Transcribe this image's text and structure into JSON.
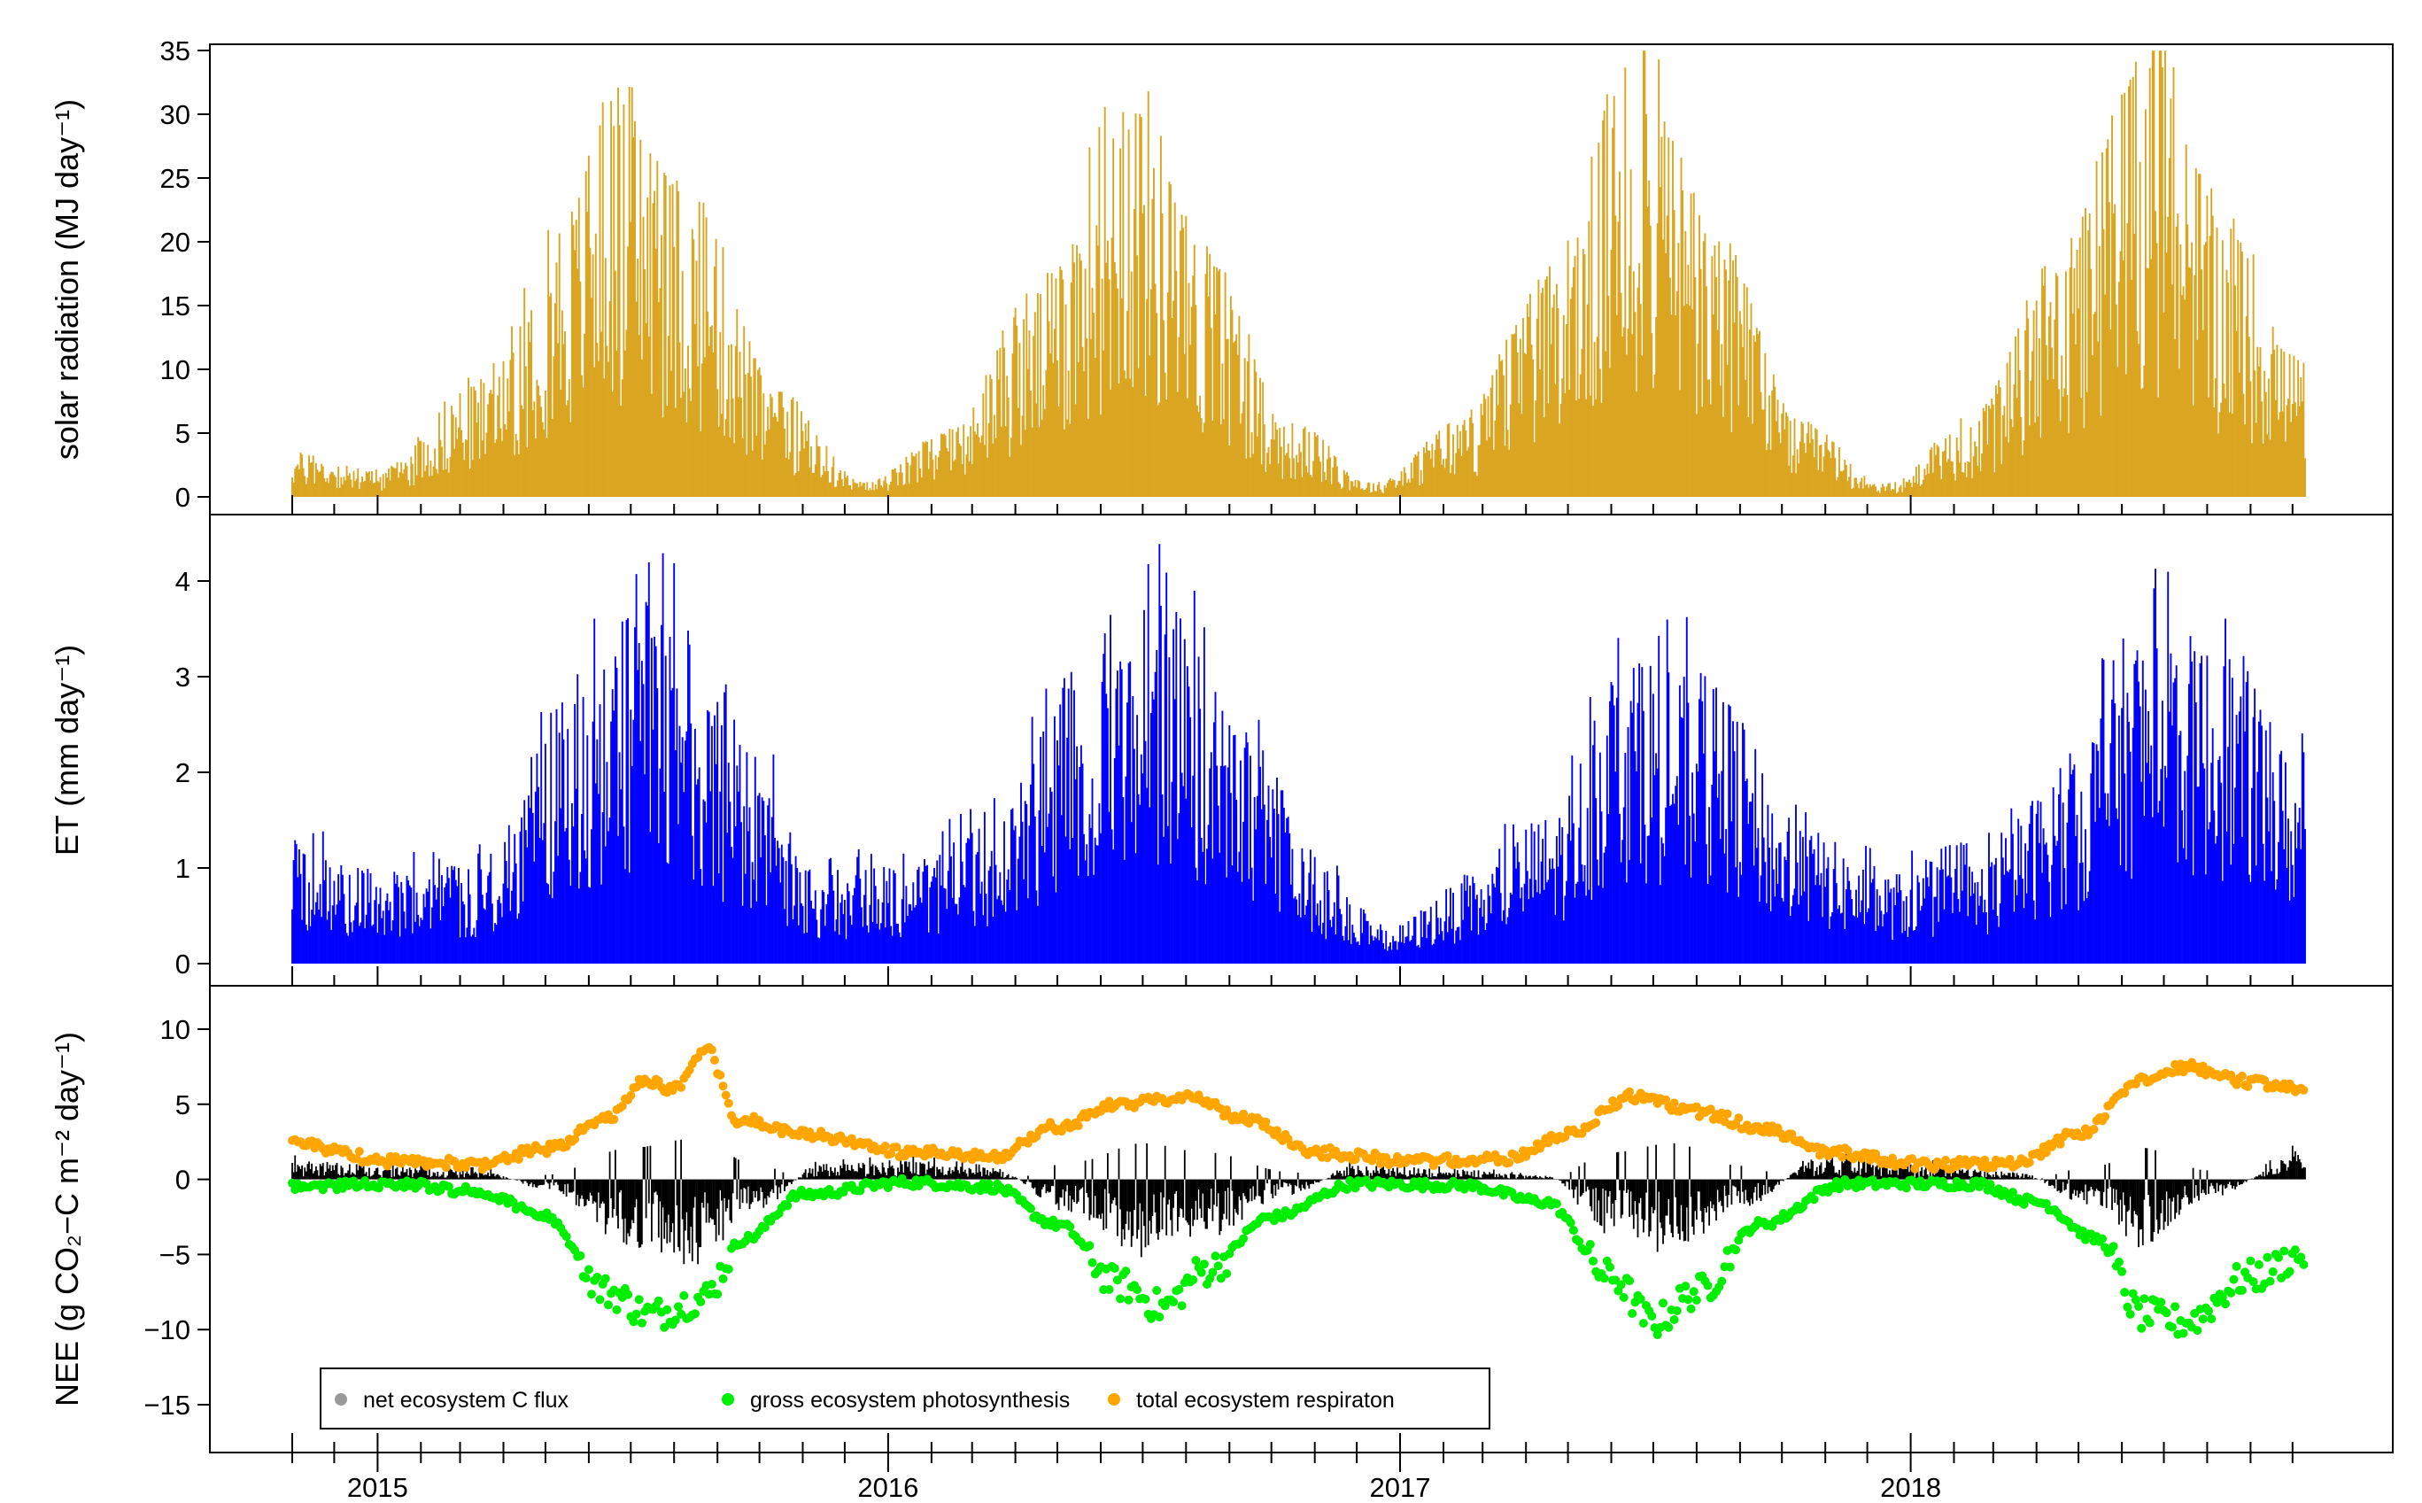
{
  "chart_data": [
    {
      "type": "bar",
      "panel": "solar",
      "ylabel": "solar radiation  (MJ day⁻¹)",
      "ylim": [
        0,
        35
      ],
      "yticks": [
        0,
        5,
        10,
        15,
        20,
        25,
        30,
        35
      ],
      "color": "#DAA520",
      "x_range": [
        "2014-11-01",
        "2018-10-10"
      ],
      "series": [
        {
          "date": "2014-11-01",
          "value": 3.0
        },
        {
          "date": "2015-01-01",
          "value": 1.8
        },
        {
          "date": "2015-03-15",
          "value": 8.0
        },
        {
          "date": "2015-05-15",
          "value": 19.5
        },
        {
          "date": "2015-06-21",
          "value": 27.5
        },
        {
          "date": "2015-08-15",
          "value": 20.0
        },
        {
          "date": "2015-10-15",
          "value": 7.0
        },
        {
          "date": "2015-12-15",
          "value": 1.0
        },
        {
          "date": "2016-02-15",
          "value": 4.5
        },
        {
          "date": "2016-04-15",
          "value": 14.0
        },
        {
          "date": "2016-06-21",
          "value": 28.8
        },
        {
          "date": "2016-08-15",
          "value": 17.0
        },
        {
          "date": "2016-10-15",
          "value": 5.0
        },
        {
          "date": "2016-12-15",
          "value": 1.0
        },
        {
          "date": "2017-02-15",
          "value": 5.5
        },
        {
          "date": "2017-04-15",
          "value": 15.0
        },
        {
          "date": "2017-06-21",
          "value": 30.5
        },
        {
          "date": "2017-08-15",
          "value": 18.0
        },
        {
          "date": "2017-10-15",
          "value": 5.0
        },
        {
          "date": "2017-12-15",
          "value": 0.9
        },
        {
          "date": "2018-02-15",
          "value": 5.5
        },
        {
          "date": "2018-04-15",
          "value": 16.0
        },
        {
          "date": "2018-06-21",
          "value": 31.5
        },
        {
          "date": "2018-08-15",
          "value": 19.0
        },
        {
          "date": "2018-10-10",
          "value": 9.0
        }
      ]
    },
    {
      "type": "bar",
      "panel": "et",
      "ylabel": "ET (mm day⁻¹)",
      "ylim": [
        0,
        4.5
      ],
      "yticks": [
        0,
        1,
        2,
        3,
        4
      ],
      "color": "#0000FF",
      "x_range": [
        "2014-11-01",
        "2018-10-10"
      ],
      "series": [
        {
          "date": "2014-11-01",
          "value": 1.1
        },
        {
          "date": "2015-01-01",
          "value": 0.8
        },
        {
          "date": "2015-03-15",
          "value": 0.9
        },
        {
          "date": "2015-05-15",
          "value": 2.3
        },
        {
          "date": "2015-07-15",
          "value": 3.3
        },
        {
          "date": "2015-09-15",
          "value": 2.0
        },
        {
          "date": "2015-11-15",
          "value": 0.8
        },
        {
          "date": "2016-01-15",
          "value": 0.9
        },
        {
          "date": "2016-03-15",
          "value": 1.2
        },
        {
          "date": "2016-05-15",
          "value": 2.6
        },
        {
          "date": "2016-07-15",
          "value": 3.2
        },
        {
          "date": "2016-09-15",
          "value": 2.0
        },
        {
          "date": "2016-11-15",
          "value": 0.8
        },
        {
          "date": "2016-12-20",
          "value": 0.3
        },
        {
          "date": "2017-02-15",
          "value": 0.7
        },
        {
          "date": "2017-04-15",
          "value": 1.3
        },
        {
          "date": "2017-06-15",
          "value": 2.8
        },
        {
          "date": "2017-08-15",
          "value": 2.4
        },
        {
          "date": "2017-10-15",
          "value": 1.2
        },
        {
          "date": "2017-12-15",
          "value": 0.8
        },
        {
          "date": "2018-02-15",
          "value": 0.9
        },
        {
          "date": "2018-04-15",
          "value": 1.6
        },
        {
          "date": "2018-06-15",
          "value": 3.0
        },
        {
          "date": "2018-08-15",
          "value": 2.8
        },
        {
          "date": "2018-10-10",
          "value": 1.7
        }
      ]
    },
    {
      "type": "scatter",
      "panel": "nee",
      "ylabel": "NEE (g CO₂−C m⁻² day⁻¹)",
      "ylim": [
        -16,
        11
      ],
      "yticks": [
        -15,
        -10,
        -5,
        0,
        5,
        10
      ],
      "x_range": [
        "2014-11-01",
        "2018-10-10"
      ],
      "xticks": [
        "2015",
        "2016",
        "2017",
        "2018"
      ],
      "legend_position": "bottom-left",
      "series": [
        {
          "name": "net ecosystem C flux",
          "type": "bar",
          "color": "#000000",
          "legend_color": "#999999",
          "values": [
            {
              "date": "2014-11-01",
              "value": 1.0
            },
            {
              "date": "2015-01-15",
              "value": 0.7
            },
            {
              "date": "2015-03-15",
              "value": 0.5
            },
            {
              "date": "2015-05-01",
              "value": -0.5
            },
            {
              "date": "2015-07-01",
              "value": -3.5
            },
            {
              "date": "2015-08-15",
              "value": -4.5
            },
            {
              "date": "2015-10-01",
              "value": -1.5
            },
            {
              "date": "2015-11-15",
              "value": 0.8
            },
            {
              "date": "2016-01-15",
              "value": 1.0
            },
            {
              "date": "2016-03-15",
              "value": 0.6
            },
            {
              "date": "2016-05-15",
              "value": -2.0
            },
            {
              "date": "2016-07-01",
              "value": -4.0
            },
            {
              "date": "2016-08-15",
              "value": -3.0
            },
            {
              "date": "2016-10-15",
              "value": -0.8
            },
            {
              "date": "2016-12-01",
              "value": 0.8
            },
            {
              "date": "2017-02-15",
              "value": 0.5
            },
            {
              "date": "2017-04-15",
              "value": 0.2
            },
            {
              "date": "2017-06-01",
              "value": -3.0
            },
            {
              "date": "2017-07-15",
              "value": -4.0
            },
            {
              "date": "2017-09-01",
              "value": -1.5
            },
            {
              "date": "2017-11-01",
              "value": 1.2
            },
            {
              "date": "2018-01-15",
              "value": 0.8
            },
            {
              "date": "2018-03-15",
              "value": 0.4
            },
            {
              "date": "2018-05-15",
              "value": -1.5
            },
            {
              "date": "2018-06-15",
              "value": -3.5
            },
            {
              "date": "2018-08-01",
              "value": -1.0
            },
            {
              "date": "2018-10-10",
              "value": 1.5
            }
          ]
        },
        {
          "name": "gross ecosystem photosynthesis",
          "type": "scatter",
          "color": "#00EE00",
          "values": [
            {
              "date": "2014-11-01",
              "value": -0.5
            },
            {
              "date": "2015-01-15",
              "value": -0.3
            },
            {
              "date": "2015-03-15",
              "value": -0.8
            },
            {
              "date": "2015-05-01",
              "value": -2.5
            },
            {
              "date": "2015-06-15",
              "value": -7.5
            },
            {
              "date": "2015-07-15",
              "value": -9.0
            },
            {
              "date": "2015-08-20",
              "value": -8.0
            },
            {
              "date": "2015-09-20",
              "value": -4.0
            },
            {
              "date": "2015-11-01",
              "value": -1.0
            },
            {
              "date": "2016-01-15",
              "value": -0.2
            },
            {
              "date": "2016-03-15",
              "value": -0.5
            },
            {
              "date": "2016-05-01",
              "value": -3.0
            },
            {
              "date": "2016-06-15",
              "value": -7.0
            },
            {
              "date": "2016-07-15",
              "value": -8.5
            },
            {
              "date": "2016-08-15",
              "value": -6.0
            },
            {
              "date": "2016-10-01",
              "value": -2.5
            },
            {
              "date": "2016-12-01",
              "value": -0.3
            },
            {
              "date": "2017-02-15",
              "value": -0.4
            },
            {
              "date": "2017-04-15",
              "value": -1.5
            },
            {
              "date": "2017-06-01",
              "value": -6.5
            },
            {
              "date": "2017-07-01",
              "value": -9.5
            },
            {
              "date": "2017-08-01",
              "value": -7.5
            },
            {
              "date": "2017-09-15",
              "value": -3.0
            },
            {
              "date": "2017-11-15",
              "value": -0.3
            },
            {
              "date": "2018-02-15",
              "value": -0.3
            },
            {
              "date": "2018-04-01",
              "value": -1.5
            },
            {
              "date": "2018-05-15",
              "value": -4.0
            },
            {
              "date": "2018-06-15",
              "value": -9.0
            },
            {
              "date": "2018-07-15",
              "value": -9.5
            },
            {
              "date": "2018-09-01",
              "value": -6.5
            },
            {
              "date": "2018-10-10",
              "value": -5.0
            }
          ]
        },
        {
          "name": "total ecosystem respiraton",
          "type": "scatter",
          "color": "#FFA500",
          "values": [
            {
              "date": "2014-11-01",
              "value": 2.3
            },
            {
              "date": "2015-01-15",
              "value": 1.2
            },
            {
              "date": "2015-03-15",
              "value": 1.0
            },
            {
              "date": "2015-05-01",
              "value": 2.0
            },
            {
              "date": "2015-06-15",
              "value": 4.0
            },
            {
              "date": "2015-07-10",
              "value": 6.5
            },
            {
              "date": "2015-08-01",
              "value": 6.0
            },
            {
              "date": "2015-08-25",
              "value": 8.5
            },
            {
              "date": "2015-09-15",
              "value": 4.0
            },
            {
              "date": "2015-11-01",
              "value": 3.0
            },
            {
              "date": "2016-01-15",
              "value": 1.8
            },
            {
              "date": "2016-03-15",
              "value": 1.5
            },
            {
              "date": "2016-05-01",
              "value": 3.5
            },
            {
              "date": "2016-06-15",
              "value": 5.0
            },
            {
              "date": "2016-08-01",
              "value": 5.5
            },
            {
              "date": "2016-09-15",
              "value": 4.0
            },
            {
              "date": "2016-11-01",
              "value": 1.8
            },
            {
              "date": "2017-01-15",
              "value": 1.2
            },
            {
              "date": "2017-03-15",
              "value": 1.3
            },
            {
              "date": "2017-05-01",
              "value": 3.0
            },
            {
              "date": "2017-06-15",
              "value": 5.5
            },
            {
              "date": "2017-08-01",
              "value": 4.5
            },
            {
              "date": "2017-09-15",
              "value": 3.5
            },
            {
              "date": "2017-11-01",
              "value": 1.8
            },
            {
              "date": "2018-01-15",
              "value": 1.0
            },
            {
              "date": "2018-03-15",
              "value": 1.0
            },
            {
              "date": "2018-05-01",
              "value": 3.0
            },
            {
              "date": "2018-06-15",
              "value": 6.5
            },
            {
              "date": "2018-07-15",
              "value": 7.5
            },
            {
              "date": "2018-09-01",
              "value": 6.5
            },
            {
              "date": "2018-10-10",
              "value": 6.0
            }
          ]
        }
      ]
    }
  ]
}
